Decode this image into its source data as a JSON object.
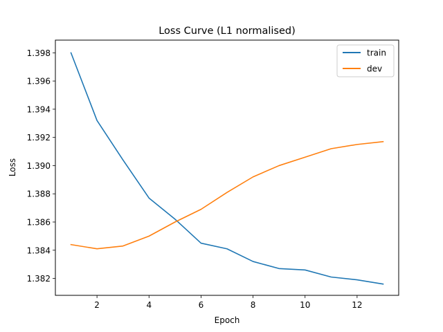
{
  "chart_data": {
    "type": "line",
    "title": "Loss Curve (L1 normalised)",
    "xlabel": "Epoch",
    "ylabel": "Loss",
    "x": [
      1,
      2,
      3,
      4,
      5,
      6,
      7,
      8,
      9,
      10,
      11,
      12,
      13
    ],
    "series": [
      {
        "name": "train",
        "color": "#1f77b4",
        "values": [
          1.398,
          1.3932,
          1.3904,
          1.3877,
          1.3862,
          1.3845,
          1.3841,
          1.3832,
          1.3827,
          1.3826,
          1.3821,
          1.3819,
          1.3816
        ]
      },
      {
        "name": "dev",
        "color": "#ff7f0e",
        "values": [
          1.3844,
          1.3841,
          1.3843,
          1.385,
          1.386,
          1.3869,
          1.3881,
          1.3892,
          1.39,
          1.3906,
          1.3912,
          1.3915,
          1.3917
        ]
      }
    ],
    "xlim": [
      0.4,
      13.6
    ],
    "ylim": [
      1.3808,
      1.3989
    ],
    "xticks": [
      2,
      4,
      6,
      8,
      10,
      12
    ],
    "yticks": [
      1.382,
      1.384,
      1.386,
      1.388,
      1.39,
      1.392,
      1.394,
      1.396,
      1.398
    ],
    "ytick_decimals": 3,
    "grid": false,
    "legend_position": "top-right"
  }
}
